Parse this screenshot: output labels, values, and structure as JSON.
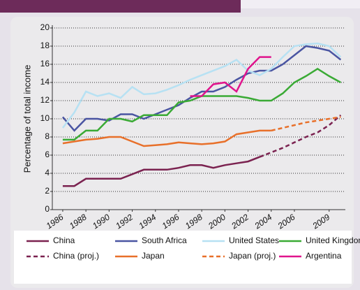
{
  "chart_data": {
    "type": "line",
    "y_label": "Percentage of total income",
    "x": [
      1986,
      1987,
      1988,
      1989,
      1990,
      1991,
      1992,
      1993,
      1994,
      1995,
      1996,
      1997,
      1998,
      1999,
      2000,
      2001,
      2002,
      2003,
      2004,
      2005,
      2006,
      2007,
      2008,
      2009,
      2010
    ],
    "series": [
      {
        "name": "China",
        "color": "#7b2250",
        "dash": false,
        "values": [
          2.6,
          2.6,
          3.4,
          3.4,
          3.4,
          3.4,
          3.9,
          4.4,
          4.4,
          4.4,
          4.6,
          4.9,
          4.9,
          4.6,
          4.9,
          5.1,
          5.3,
          5.8,
          null,
          null,
          null,
          null,
          null,
          null,
          null
        ]
      },
      {
        "name": "South Africa",
        "color": "#4a55a2",
        "dash": false,
        "values": [
          10.2,
          8.7,
          10,
          10,
          9.8,
          10.5,
          10.5,
          10,
          10.5,
          11,
          11.5,
          12.3,
          13,
          13,
          13.5,
          14.3,
          15,
          15.3,
          15.3,
          16,
          17,
          18,
          17.8,
          17.5,
          16.5
        ]
      },
      {
        "name": "United States",
        "color": "#b7e1f3",
        "dash": false,
        "values": [
          9,
          10.7,
          13,
          12.5,
          12.8,
          12.3,
          13.5,
          12.7,
          12.8,
          13.2,
          13.7,
          14.3,
          14.8,
          15.3,
          15.8,
          16.5,
          15.3,
          14.8,
          15.5,
          16.8,
          18,
          18.2,
          18.3,
          18,
          16.8
        ]
      },
      {
        "name": "United Kingdom",
        "color": "#3aaa35",
        "dash": false,
        "values": [
          7.7,
          7.7,
          8.7,
          8.7,
          10,
          10,
          9.7,
          10.4,
          10.4,
          10.4,
          11.8,
          12,
          12.5,
          12.5,
          12.5,
          12.5,
          12.3,
          12,
          12,
          12.8,
          14,
          14.7,
          15.5,
          14.7,
          14
        ]
      },
      {
        "name": "China (proj.)",
        "color": "#7b2250",
        "dash": true,
        "values": [
          null,
          null,
          null,
          null,
          null,
          null,
          null,
          null,
          null,
          null,
          null,
          null,
          null,
          null,
          null,
          null,
          null,
          5.8,
          6.3,
          6.8,
          7.4,
          8,
          8.5,
          9.3,
          10.4
        ]
      },
      {
        "name": "Japan",
        "color": "#e8702a",
        "dash": false,
        "values": [
          7.3,
          7.5,
          7.7,
          7.8,
          8,
          8,
          7.5,
          7,
          7.1,
          7.2,
          7.4,
          7.3,
          7.2,
          7.3,
          7.5,
          8.3,
          8.5,
          8.7,
          8.7,
          null,
          null,
          null,
          null,
          null,
          null
        ]
      },
      {
        "name": "Japan (proj.)",
        "color": "#e8702a",
        "dash": true,
        "values": [
          null,
          null,
          null,
          null,
          null,
          null,
          null,
          null,
          null,
          null,
          null,
          null,
          null,
          null,
          null,
          null,
          null,
          null,
          8.7,
          9,
          9.3,
          9.6,
          9.8,
          10,
          10.2
        ]
      },
      {
        "name": "Argentina",
        "color": "#e0148c",
        "dash": false,
        "values": [
          null,
          null,
          null,
          null,
          null,
          null,
          null,
          null,
          null,
          null,
          null,
          12.5,
          12.5,
          13.8,
          14,
          13,
          15.5,
          16.8,
          16.8,
          null,
          null,
          null,
          null,
          null,
          null
        ]
      }
    ],
    "xlim": [
      1985.1,
      2010.4
    ],
    "xticks": [
      1986,
      1988,
      1990,
      1992,
      1994,
      1996,
      1998,
      2000,
      2002,
      2004,
      2006,
      2009
    ],
    "ylim": [
      0,
      20
    ],
    "yticks": [
      0,
      2,
      4,
      6,
      8,
      10,
      12,
      14,
      16,
      18,
      20
    ],
    "grid": true
  }
}
